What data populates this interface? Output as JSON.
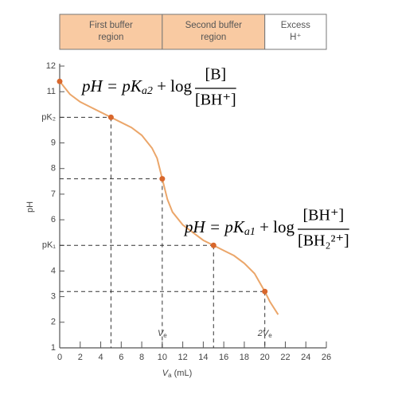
{
  "chart_data": {
    "type": "line",
    "regions": [
      {
        "label": [
          "First buffer",
          "region"
        ],
        "from": 0,
        "to": 10,
        "color": "#f9caa2"
      },
      {
        "label": [
          "Second buffer",
          "region"
        ],
        "from": 10,
        "to": 20,
        "color": "#f9caa2"
      },
      {
        "label": [
          "Excess",
          "H⁺"
        ],
        "from": 20,
        "to": 26,
        "color": "#ffffff"
      }
    ],
    "x": [
      0,
      1,
      2,
      3,
      4,
      5,
      6,
      7,
      8,
      9,
      9.5,
      10,
      10.5,
      11,
      12,
      13,
      14,
      15,
      16,
      17,
      18,
      19,
      20,
      20.5,
      21.3
    ],
    "series": [
      {
        "color": "#eba66a",
        "values": [
          11.4,
          10.9,
          10.6,
          10.4,
          10.2,
          10.0,
          9.8,
          9.6,
          9.3,
          8.8,
          8.4,
          7.6,
          6.8,
          6.3,
          5.8,
          5.5,
          5.2,
          5.0,
          4.8,
          4.6,
          4.3,
          3.9,
          3.2,
          2.8,
          2.3
        ]
      }
    ],
    "markers": {
      "color": "#d8672c",
      "x": [
        0,
        5,
        10,
        15,
        20
      ],
      "values": [
        11.4,
        10,
        7.6,
        5,
        3.2
      ]
    },
    "xlim": [
      0,
      26
    ],
    "xticks": [
      0,
      2,
      4,
      6,
      8,
      10,
      12,
      14,
      16,
      18,
      20,
      22,
      24,
      26
    ],
    "ylim": [
      1,
      12
    ],
    "yticks": [
      1,
      2,
      3,
      4,
      {
        "value": 5,
        "label": "pK₁"
      },
      6,
      7,
      8,
      9,
      {
        "value": 10,
        "label": "pK₂"
      },
      11,
      12
    ],
    "x_label": {
      "main": "V",
      "sub": "a",
      "rest": " (mL)"
    },
    "y_label": "pH",
    "annotations": [
      {
        "main": "V",
        "sub": "e",
        "x": 10
      },
      {
        "main": "2V",
        "sub": "e",
        "x": 20
      }
    ],
    "equations": [
      {
        "left": "pH = pK",
        "sub": "a2",
        "mid": " + log",
        "numerator": "[B]",
        "denominator": "[BH⁺]"
      },
      {
        "left": "pH = pK",
        "sub": "a1",
        "mid": " + log",
        "numerator": "[BH⁺]",
        "denominator": "[BH₂²⁺]"
      }
    ]
  }
}
